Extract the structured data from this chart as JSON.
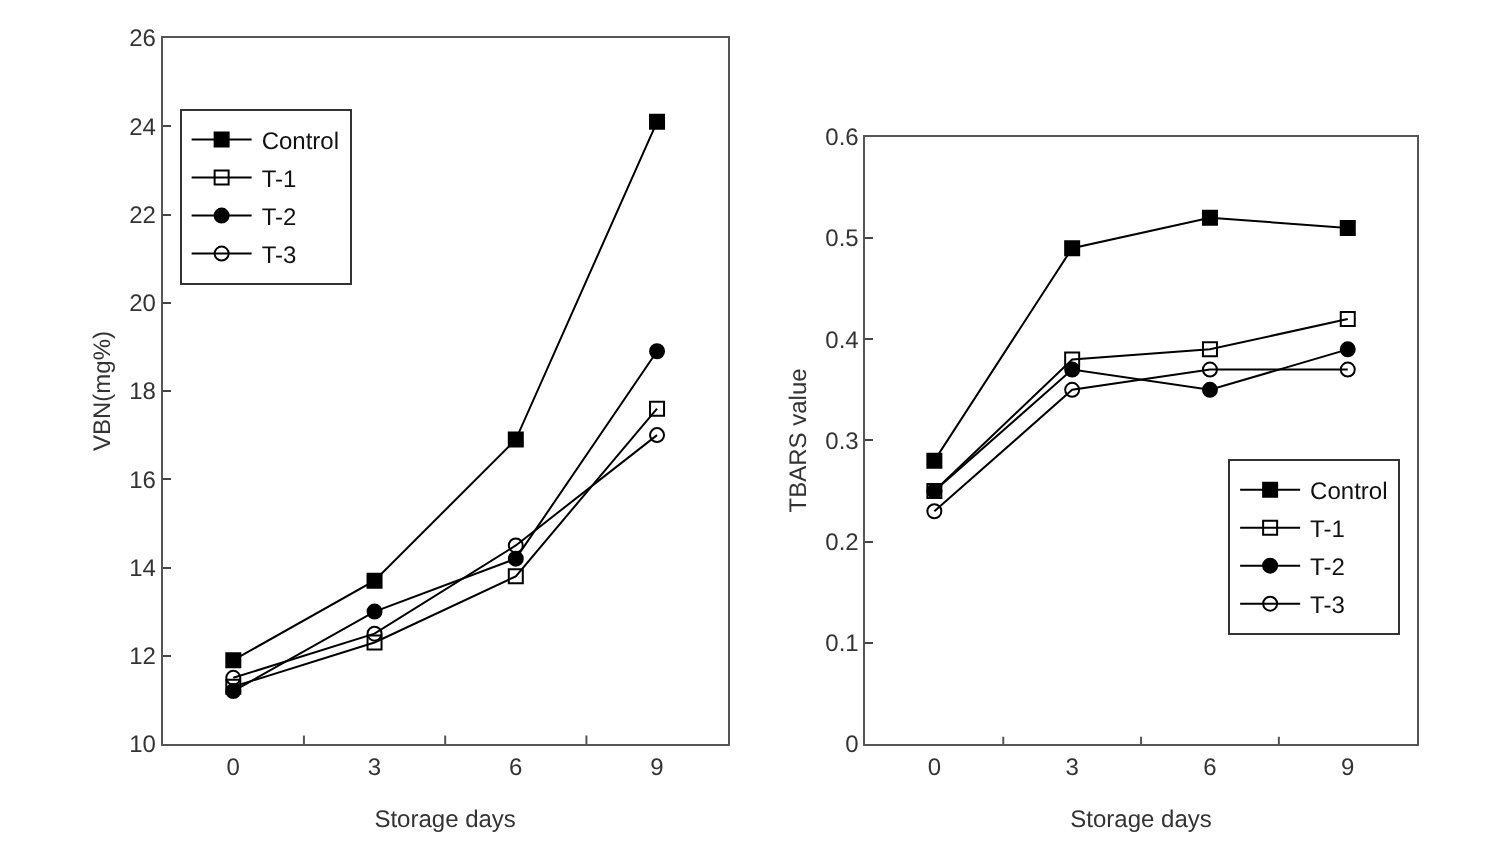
{
  "chart_data": [
    {
      "type": "line",
      "xlabel": "Storage days",
      "ylabel": "VBN(mg%)",
      "categories": [
        "0",
        "3",
        "6",
        "9"
      ],
      "ylim": [
        10,
        26
      ],
      "yticks": [
        10,
        12,
        14,
        16,
        18,
        20,
        22,
        24,
        26
      ],
      "legend": "top left",
      "line_style": "solid",
      "series": [
        {
          "name": "Control",
          "color": "#000000",
          "marker": "square",
          "values": [
            11.9,
            13.7,
            16.9,
            24.1
          ]
        },
        {
          "name": "T-1",
          "color": "#000000",
          "marker": "square-open",
          "values": [
            11.3,
            12.3,
            13.8,
            17.6
          ]
        },
        {
          "name": "T-2",
          "color": "#000000",
          "marker": "circle",
          "values": [
            11.2,
            13.0,
            14.2,
            18.9
          ]
        },
        {
          "name": "T-3",
          "color": "#000000",
          "marker": "circle-open",
          "values": [
            11.5,
            12.5,
            14.5,
            17.0
          ]
        }
      ]
    },
    {
      "type": "line",
      "xlabel": "Storage days",
      "ylabel": "TBARS value",
      "categories": [
        "0",
        "3",
        "6",
        "9"
      ],
      "ylim": [
        0,
        0.6
      ],
      "yticks": [
        {
          "value": 0,
          "label": "0"
        },
        0.1,
        0.2,
        0.3,
        0.4,
        0.5,
        0.6
      ],
      "legend": "bottom right",
      "line_style": "solid",
      "series": [
        {
          "name": "Control",
          "color": "#000000",
          "marker": "square",
          "values": [
            0.28,
            0.49,
            0.52,
            0.51
          ]
        },
        {
          "name": "T-1",
          "color": "#000000",
          "marker": "square-open",
          "values": [
            0.25,
            0.38,
            0.39,
            0.42
          ]
        },
        {
          "name": "T-2",
          "color": "#000000",
          "marker": "circle",
          "values": [
            0.25,
            0.37,
            0.35,
            0.39
          ]
        },
        {
          "name": "T-3",
          "color": "#000000",
          "marker": "circle-open",
          "values": [
            0.23,
            0.35,
            0.37,
            0.37
          ]
        }
      ]
    }
  ]
}
